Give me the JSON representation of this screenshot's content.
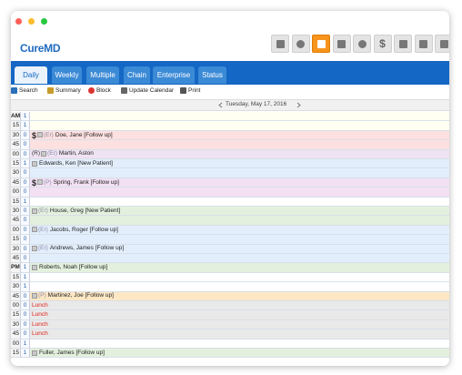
{
  "header": {
    "logo": "CureMD",
    "currency_icon": "$"
  },
  "tabs": [
    "Daily",
    "Weekly",
    "Multiple",
    "Chain",
    "Enterprise",
    "Status"
  ],
  "actions": [
    "Search",
    "Summary",
    "Block",
    "Update Calendar",
    "Print"
  ],
  "date": "Tuesday, May 17, 2016",
  "rows": [
    {
      "time": "AM",
      "count": 1,
      "color": "#fffff2"
    },
    {
      "time": "15",
      "count": 1,
      "color": "#fffff2"
    },
    {
      "time": "30",
      "count": 0,
      "dollar": "$",
      "tag": "(Er)",
      "name": "Doe, Jane [Follow up]",
      "color": "#fde0e0"
    },
    {
      "time": "45",
      "count": 0,
      "color": "#fde0e0"
    },
    {
      "time": "00",
      "count": 0,
      "flag": "(R)",
      "tag": "(Er)",
      "name": "Martin, Aston",
      "color": "#efe2f2"
    },
    {
      "time": "15",
      "count": 1,
      "name": "Edwards, Ken [New Patient]",
      "color": "#e2eefb"
    },
    {
      "time": "30",
      "count": 0,
      "color": "#e2eefb"
    },
    {
      "time": "45",
      "count": 0,
      "dollar": "$",
      "tag": "(P)",
      "name": "Spring, Frank [Follow up]",
      "color": "#f3e0f3"
    },
    {
      "time": "00",
      "count": 0,
      "color": "#f3e0f3"
    },
    {
      "time": "15",
      "count": 1,
      "color": "#ffffff"
    },
    {
      "time": "30",
      "count": 0,
      "tag": "(Er)",
      "name": "House, Greg [New Patient]",
      "color": "#e3f0dd"
    },
    {
      "time": "45",
      "count": 0,
      "color": "#e3f0dd"
    },
    {
      "time": "00",
      "count": 0,
      "tag": "(Er)",
      "name": "Jacobs, Roger [Follow up]",
      "color": "#e2eefb"
    },
    {
      "time": "15",
      "count": 0,
      "color": "#e2eefb"
    },
    {
      "time": "30",
      "count": 0,
      "tag": "(Er)",
      "name": "Andrews, James [Follow up]",
      "color": "#e2eefb"
    },
    {
      "time": "45",
      "count": 0,
      "color": "#e2eefb"
    },
    {
      "time": "PM",
      "count": 1,
      "name": "Roberts, Noah [Follow up]",
      "color": "#e3f0dd"
    },
    {
      "time": "15",
      "count": 1,
      "color": "#ffffff"
    },
    {
      "time": "30",
      "count": 1,
      "color": "#ffffff"
    },
    {
      "time": "45",
      "count": 0,
      "tag": "(P)",
      "name": "Martinez, Joe [Follow up]",
      "color": "#fde7c4"
    },
    {
      "time": "00",
      "count": 0,
      "block": "Lunch",
      "color": "#e9e9e9"
    },
    {
      "time": "15",
      "count": 0,
      "block": "Lunch",
      "color": "#e9e9e9"
    },
    {
      "time": "30",
      "count": 0,
      "block": "Lunch",
      "color": "#e9e9e9"
    },
    {
      "time": "45",
      "count": 0,
      "block": "Lunch",
      "color": "#e9e9e9"
    },
    {
      "time": "00",
      "count": 1,
      "color": "#ffffff"
    },
    {
      "time": "15",
      "count": 1,
      "name": "Fuller, James [Follow up]",
      "color": "#e3f0dd"
    }
  ]
}
